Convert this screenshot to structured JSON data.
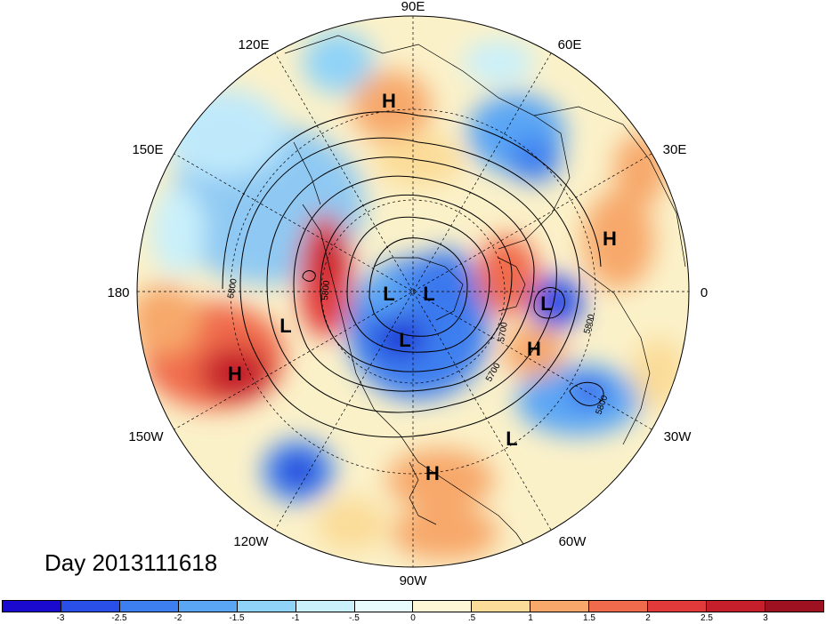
{
  "title": "Day 2013111618",
  "longitude_labels": {
    "deg90E": "90E",
    "deg60E": "60E",
    "deg30E": "30E",
    "deg0": "0",
    "deg30W": "30W",
    "deg60W": "60W",
    "deg90W": "90W",
    "deg120W": "120W",
    "deg150W": "150W",
    "deg180": "180",
    "deg150E": "150E",
    "deg120E": "120E"
  },
  "contour_labels": [
    "5800",
    "5800",
    "5700",
    "5700",
    "5800",
    "5800"
  ],
  "pressure_centers": [
    {
      "label": "H",
      "region": "eastern Siberia"
    },
    {
      "label": "H",
      "region": "northern Africa"
    },
    {
      "label": "H",
      "region": "central North Atlantic"
    },
    {
      "label": "H",
      "region": "north-east Pacific"
    },
    {
      "label": "H",
      "region": "Caribbean"
    },
    {
      "label": "L",
      "region": "Arctic Ocean"
    },
    {
      "label": "L",
      "region": "Arctic Ocean"
    },
    {
      "label": "L",
      "region": "Canadian Arctic"
    },
    {
      "label": "L",
      "region": "Bering Sea"
    },
    {
      "label": "L",
      "region": "British Isles"
    },
    {
      "label": "L",
      "region": "subtropical Atlantic"
    }
  ],
  "colorbar": {
    "colors": [
      "#1a0acf",
      "#2a4fe8",
      "#3d7ff0",
      "#5aa6f5",
      "#8fd3f8",
      "#c9f0fb",
      "#e8fbfd",
      "#fff7d6",
      "#fbdc98",
      "#f7a86a",
      "#f06a4c",
      "#e23a3a",
      "#c41f2a",
      "#9e1121"
    ],
    "tick_labels": [
      "-3",
      "-2.5",
      "-2",
      "-1.5",
      "-1",
      "-.5",
      "0",
      ".5",
      "1",
      "1.5",
      "2",
      "2.5",
      "3"
    ]
  }
}
